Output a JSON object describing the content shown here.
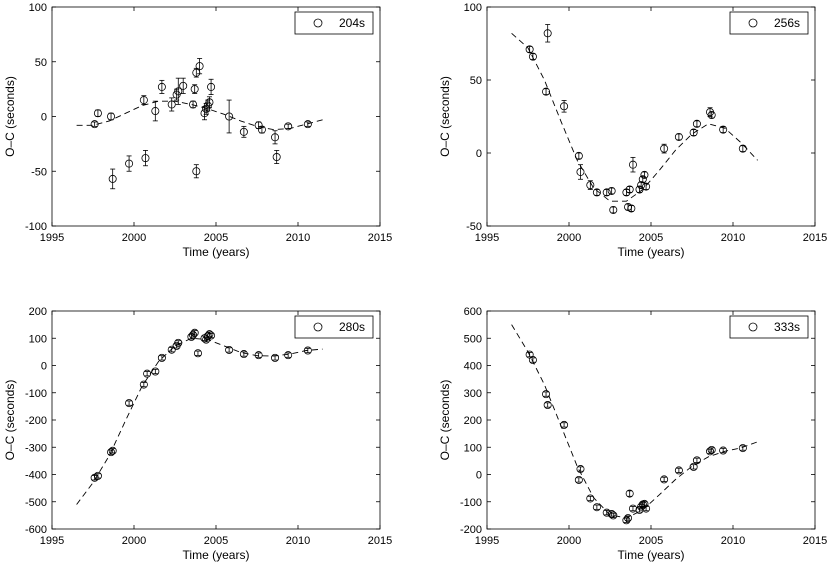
{
  "chart_data": [
    {
      "type": "scatter",
      "legend": "204s",
      "legend_position": "top-right",
      "xlabel": "Time (years)",
      "ylabel": "O–C (seconds)",
      "xlim": [
        1995,
        2015
      ],
      "ylim": [
        -100,
        100
      ],
      "xticks": [
        1995,
        2000,
        2005,
        2010,
        2015
      ],
      "yticks": [
        -100,
        -50,
        0,
        50,
        100
      ],
      "points": [
        {
          "x": 1997.6,
          "y": -7,
          "err": 2
        },
        {
          "x": 1997.8,
          "y": 3,
          "err": 3
        },
        {
          "x": 1998.6,
          "y": 0,
          "err": 3
        },
        {
          "x": 1998.7,
          "y": -57,
          "err": 9
        },
        {
          "x": 1999.7,
          "y": -43,
          "err": 7
        },
        {
          "x": 2000.6,
          "y": 15,
          "err": 4
        },
        {
          "x": 2000.7,
          "y": -38,
          "err": 7
        },
        {
          "x": 2001.3,
          "y": 5,
          "err": 9
        },
        {
          "x": 2001.7,
          "y": 27,
          "err": 6
        },
        {
          "x": 2002.3,
          "y": 11,
          "err": 6
        },
        {
          "x": 2002.6,
          "y": 20,
          "err": 5
        },
        {
          "x": 2002.7,
          "y": 23,
          "err": 12
        },
        {
          "x": 2003.0,
          "y": 28,
          "err": 7
        },
        {
          "x": 2003.6,
          "y": 11,
          "err": 3
        },
        {
          "x": 2003.7,
          "y": 25,
          "err": 4
        },
        {
          "x": 2003.8,
          "y": -50,
          "err": 6
        },
        {
          "x": 2003.8,
          "y": 40,
          "err": 4
        },
        {
          "x": 2004.0,
          "y": 46,
          "err": 7
        },
        {
          "x": 2004.3,
          "y": 3,
          "err": 6
        },
        {
          "x": 2004.4,
          "y": 7,
          "err": 5
        },
        {
          "x": 2004.5,
          "y": 10,
          "err": 5
        },
        {
          "x": 2004.6,
          "y": 13,
          "err": 5
        },
        {
          "x": 2004.7,
          "y": 27,
          "err": 7
        },
        {
          "x": 2005.8,
          "y": 0,
          "err": 15
        },
        {
          "x": 2006.7,
          "y": -14,
          "err": 5
        },
        {
          "x": 2007.6,
          "y": -8,
          "err": 3
        },
        {
          "x": 2007.8,
          "y": -12,
          "err": 3
        },
        {
          "x": 2008.6,
          "y": -19,
          "err": 6
        },
        {
          "x": 2008.7,
          "y": -37,
          "err": 6
        },
        {
          "x": 2009.4,
          "y": -9,
          "err": 2
        },
        {
          "x": 2010.6,
          "y": -7,
          "err": 2
        }
      ],
      "fit": [
        [
          1996.5,
          -8
        ],
        [
          1997.5,
          -8
        ],
        [
          1998.5,
          -4
        ],
        [
          1999.5,
          3
        ],
        [
          2000.5,
          10
        ],
        [
          2001.5,
          14
        ],
        [
          2002.5,
          14
        ],
        [
          2003.5,
          11
        ],
        [
          2004.5,
          7
        ],
        [
          2005.5,
          2
        ],
        [
          2006.5,
          -4
        ],
        [
          2007.5,
          -9
        ],
        [
          2008.5,
          -12
        ],
        [
          2009.5,
          -11
        ],
        [
          2010.5,
          -7
        ],
        [
          2011.5,
          -3
        ]
      ]
    },
    {
      "type": "scatter",
      "legend": "256s",
      "legend_position": "top-right",
      "xlabel": "Time (years)",
      "ylabel": "O–C (seconds)",
      "xlim": [
        1995,
        2015
      ],
      "ylim": [
        -50,
        100
      ],
      "xticks": [
        1995,
        2000,
        2005,
        2010,
        2015
      ],
      "yticks": [
        -50,
        0,
        50,
        100
      ],
      "points": [
        {
          "x": 1997.6,
          "y": 71,
          "err": 2
        },
        {
          "x": 1997.8,
          "y": 66,
          "err": 2
        },
        {
          "x": 1998.6,
          "y": 42,
          "err": 2
        },
        {
          "x": 1998.7,
          "y": 82,
          "err": 6
        },
        {
          "x": 1999.7,
          "y": 32,
          "err": 4
        },
        {
          "x": 2000.6,
          "y": -2,
          "err": 2
        },
        {
          "x": 2000.7,
          "y": -13,
          "err": 5
        },
        {
          "x": 2001.3,
          "y": -22,
          "err": 3
        },
        {
          "x": 2001.7,
          "y": -27,
          "err": 2
        },
        {
          "x": 2002.3,
          "y": -27,
          "err": 2
        },
        {
          "x": 2002.6,
          "y": -26,
          "err": 2
        },
        {
          "x": 2002.7,
          "y": -39,
          "err": 2
        },
        {
          "x": 2003.5,
          "y": -27,
          "err": 2
        },
        {
          "x": 2003.6,
          "y": -37,
          "err": 2
        },
        {
          "x": 2003.7,
          "y": -25,
          "err": 2
        },
        {
          "x": 2003.8,
          "y": -38,
          "err": 2
        },
        {
          "x": 2003.9,
          "y": -8,
          "err": 5
        },
        {
          "x": 2004.3,
          "y": -25,
          "err": 2
        },
        {
          "x": 2004.4,
          "y": -22,
          "err": 2
        },
        {
          "x": 2004.5,
          "y": -18,
          "err": 2
        },
        {
          "x": 2004.6,
          "y": -15,
          "err": 2
        },
        {
          "x": 2004.7,
          "y": -23,
          "err": 2
        },
        {
          "x": 2005.8,
          "y": 3,
          "err": 3
        },
        {
          "x": 2006.7,
          "y": 11,
          "err": 2
        },
        {
          "x": 2007.6,
          "y": 14,
          "err": 2
        },
        {
          "x": 2007.8,
          "y": 20,
          "err": 2
        },
        {
          "x": 2008.6,
          "y": 28,
          "err": 3
        },
        {
          "x": 2008.7,
          "y": 26,
          "err": 2
        },
        {
          "x": 2009.4,
          "y": 16,
          "err": 2
        },
        {
          "x": 2010.6,
          "y": 3,
          "err": 2
        }
      ],
      "fit": [
        [
          1996.5,
          82
        ],
        [
          1997.5,
          72
        ],
        [
          1998.5,
          50
        ],
        [
          1999.5,
          22
        ],
        [
          2000.5,
          -5
        ],
        [
          2001.5,
          -24
        ],
        [
          2002.5,
          -33
        ],
        [
          2003.5,
          -33
        ],
        [
          2004.5,
          -25
        ],
        [
          2005.5,
          -12
        ],
        [
          2006.5,
          2
        ],
        [
          2007.5,
          13
        ],
        [
          2008.5,
          20
        ],
        [
          2009.5,
          17
        ],
        [
          2010.5,
          7
        ],
        [
          2011.5,
          -5
        ]
      ]
    },
    {
      "type": "scatter",
      "legend": "280s",
      "legend_position": "top-right",
      "xlabel": "Time (years)",
      "ylabel": "O–C (seconds)",
      "xlim": [
        1995,
        2015
      ],
      "ylim": [
        -600,
        200
      ],
      "xticks": [
        1995,
        2000,
        2005,
        2010,
        2015
      ],
      "yticks": [
        -600,
        -500,
        -400,
        -300,
        -200,
        -100,
        0,
        100,
        200
      ],
      "points": [
        {
          "x": 1997.6,
          "y": -412,
          "err": 8
        },
        {
          "x": 1997.8,
          "y": -405,
          "err": 8
        },
        {
          "x": 1998.6,
          "y": -318,
          "err": 8
        },
        {
          "x": 1998.7,
          "y": -313,
          "err": 8
        },
        {
          "x": 1999.7,
          "y": -138,
          "err": 8
        },
        {
          "x": 2000.6,
          "y": -70,
          "err": 8
        },
        {
          "x": 2000.8,
          "y": -30,
          "err": 8
        },
        {
          "x": 2001.3,
          "y": -22,
          "err": 8
        },
        {
          "x": 2001.7,
          "y": 28,
          "err": 8
        },
        {
          "x": 2002.3,
          "y": 58,
          "err": 8
        },
        {
          "x": 2002.6,
          "y": 72,
          "err": 8
        },
        {
          "x": 2002.7,
          "y": 83,
          "err": 8
        },
        {
          "x": 2003.5,
          "y": 105,
          "err": 8
        },
        {
          "x": 2003.6,
          "y": 112,
          "err": 8
        },
        {
          "x": 2003.7,
          "y": 120,
          "err": 8
        },
        {
          "x": 2003.9,
          "y": 45,
          "err": 8
        },
        {
          "x": 2004.3,
          "y": 100,
          "err": 8
        },
        {
          "x": 2004.4,
          "y": 95,
          "err": 8
        },
        {
          "x": 2004.5,
          "y": 108,
          "err": 8
        },
        {
          "x": 2004.6,
          "y": 115,
          "err": 8
        },
        {
          "x": 2004.7,
          "y": 110,
          "err": 8
        },
        {
          "x": 2005.8,
          "y": 57,
          "err": 8
        },
        {
          "x": 2006.7,
          "y": 42,
          "err": 8
        },
        {
          "x": 2007.6,
          "y": 38,
          "err": 8
        },
        {
          "x": 2008.6,
          "y": 28,
          "err": 8
        },
        {
          "x": 2009.4,
          "y": 38,
          "err": 8
        },
        {
          "x": 2010.6,
          "y": 55,
          "err": 8
        }
      ],
      "fit": [
        [
          1996.5,
          -510
        ],
        [
          1997.5,
          -430
        ],
        [
          1998.5,
          -330
        ],
        [
          1999.5,
          -200
        ],
        [
          2000.5,
          -75
        ],
        [
          2001.5,
          15
        ],
        [
          2002.5,
          72
        ],
        [
          2003.5,
          100
        ],
        [
          2004.5,
          95
        ],
        [
          2005.5,
          72
        ],
        [
          2006.5,
          48
        ],
        [
          2007.5,
          36
        ],
        [
          2008.5,
          35
        ],
        [
          2009.5,
          42
        ],
        [
          2010.5,
          55
        ],
        [
          2011.5,
          60
        ]
      ]
    },
    {
      "type": "scatter",
      "legend": "333s",
      "legend_position": "top-right",
      "xlabel": "Time (years)",
      "ylabel": "O–C (seconds)",
      "xlim": [
        1995,
        2015
      ],
      "ylim": [
        -200,
        600
      ],
      "xticks": [
        1995,
        2000,
        2005,
        2010,
        2015
      ],
      "yticks": [
        -200,
        -100,
        0,
        100,
        200,
        300,
        400,
        500,
        600
      ],
      "points": [
        {
          "x": 1997.6,
          "y": 440,
          "err": 8
        },
        {
          "x": 1997.8,
          "y": 420,
          "err": 8
        },
        {
          "x": 1998.6,
          "y": 295,
          "err": 8
        },
        {
          "x": 1998.7,
          "y": 255,
          "err": 8
        },
        {
          "x": 1999.7,
          "y": 182,
          "err": 8
        },
        {
          "x": 2000.6,
          "y": -20,
          "err": 8
        },
        {
          "x": 2000.7,
          "y": 20,
          "err": 8
        },
        {
          "x": 2001.3,
          "y": -88,
          "err": 8
        },
        {
          "x": 2001.7,
          "y": -120,
          "err": 8
        },
        {
          "x": 2002.3,
          "y": -140,
          "err": 8
        },
        {
          "x": 2002.6,
          "y": -145,
          "err": 8
        },
        {
          "x": 2002.7,
          "y": -150,
          "err": 8
        },
        {
          "x": 2003.5,
          "y": -168,
          "err": 8
        },
        {
          "x": 2003.6,
          "y": -160,
          "err": 8
        },
        {
          "x": 2003.7,
          "y": -70,
          "err": 10
        },
        {
          "x": 2003.9,
          "y": -125,
          "err": 8
        },
        {
          "x": 2004.3,
          "y": -130,
          "err": 8
        },
        {
          "x": 2004.4,
          "y": -118,
          "err": 8
        },
        {
          "x": 2004.5,
          "y": -110,
          "err": 8
        },
        {
          "x": 2004.6,
          "y": -108,
          "err": 8
        },
        {
          "x": 2004.7,
          "y": -125,
          "err": 8
        },
        {
          "x": 2005.8,
          "y": -18,
          "err": 8
        },
        {
          "x": 2006.7,
          "y": 15,
          "err": 8
        },
        {
          "x": 2007.6,
          "y": 28,
          "err": 8
        },
        {
          "x": 2007.8,
          "y": 52,
          "err": 8
        },
        {
          "x": 2008.6,
          "y": 85,
          "err": 8
        },
        {
          "x": 2008.7,
          "y": 90,
          "err": 8
        },
        {
          "x": 2009.4,
          "y": 88,
          "err": 8
        },
        {
          "x": 2010.6,
          "y": 97,
          "err": 8
        }
      ],
      "fit": [
        [
          1996.5,
          550
        ],
        [
          1997.5,
          450
        ],
        [
          1998.5,
          330
        ],
        [
          1999.5,
          180
        ],
        [
          2000.5,
          30
        ],
        [
          2001.5,
          -85
        ],
        [
          2002.5,
          -148
        ],
        [
          2003.5,
          -160
        ],
        [
          2004.5,
          -130
        ],
        [
          2005.5,
          -75
        ],
        [
          2006.5,
          -18
        ],
        [
          2007.5,
          30
        ],
        [
          2008.5,
          65
        ],
        [
          2009.5,
          85
        ],
        [
          2010.5,
          98
        ],
        [
          2011.5,
          120
        ]
      ]
    }
  ]
}
